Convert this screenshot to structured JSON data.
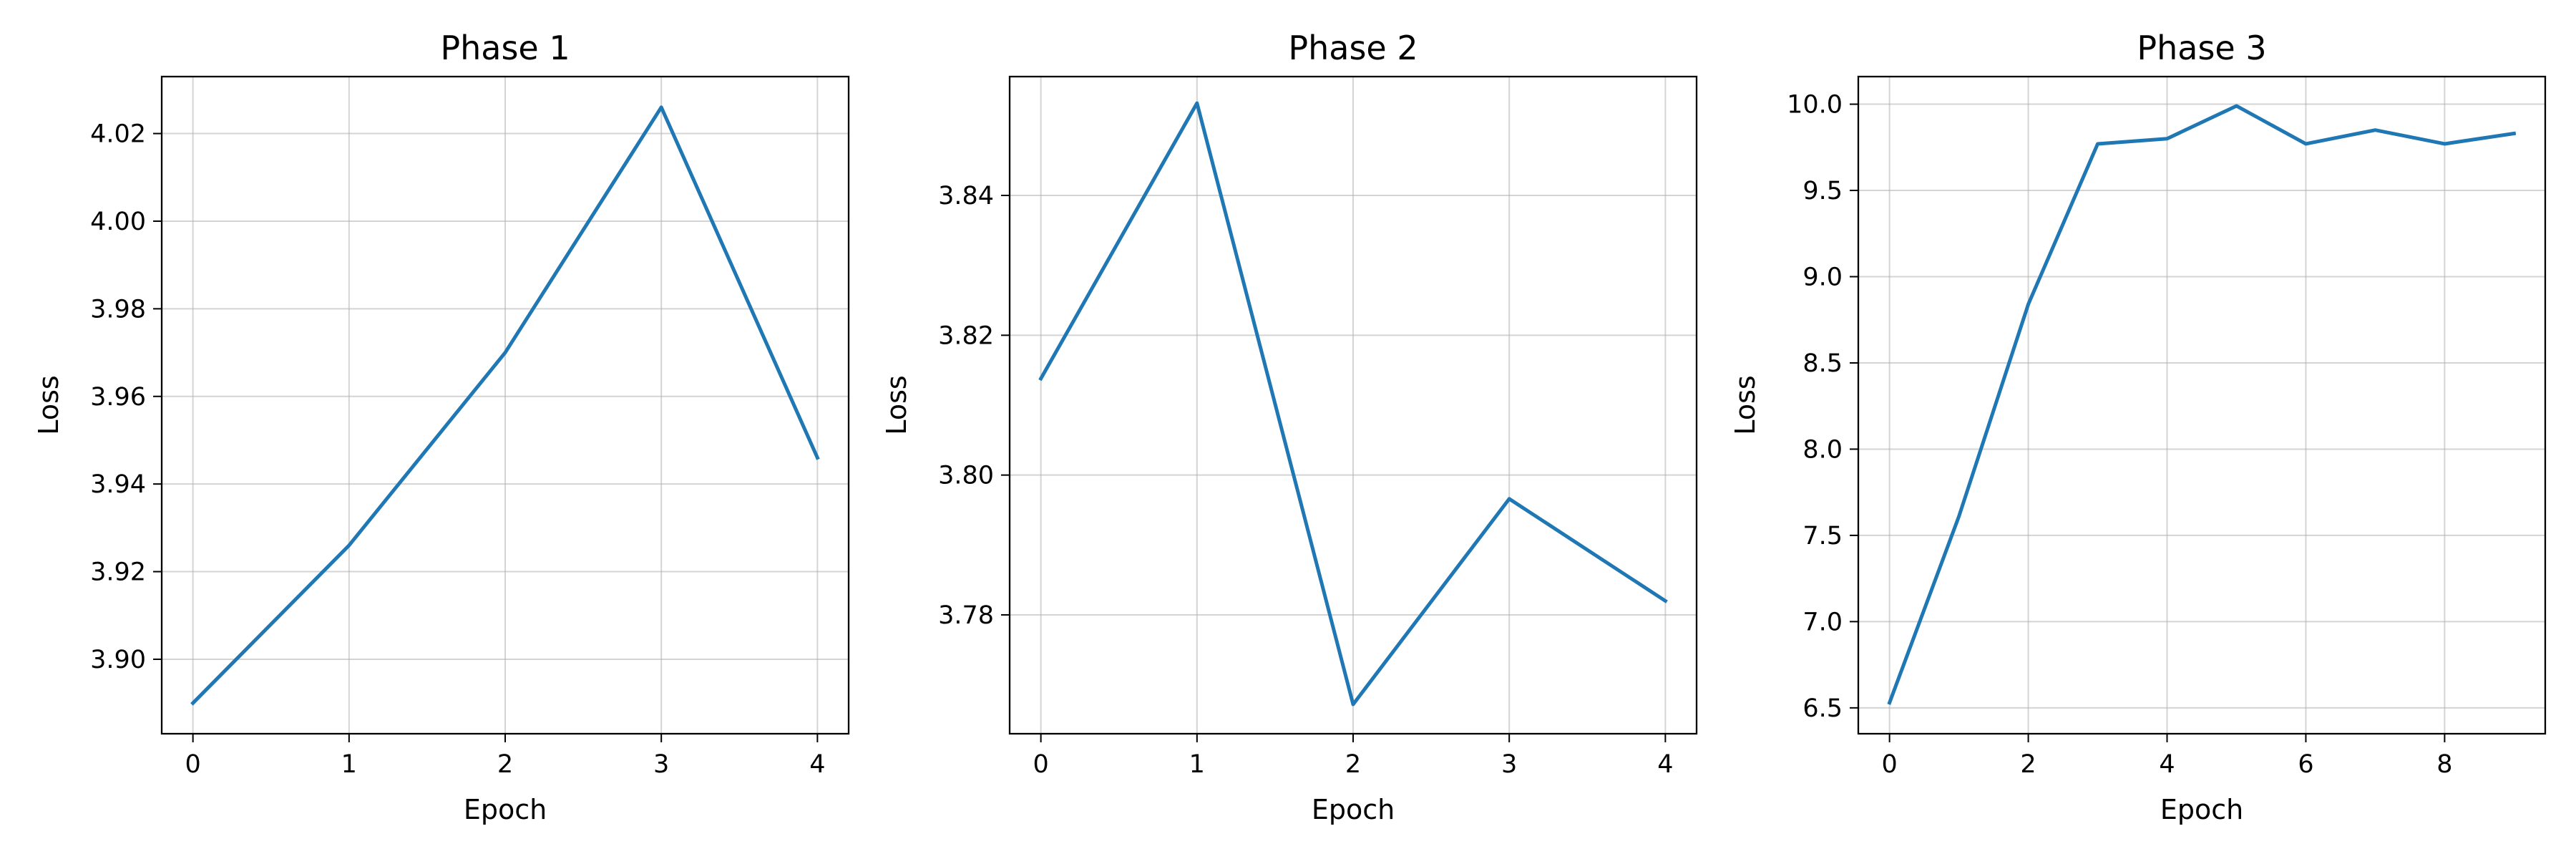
{
  "chart_data": [
    {
      "type": "line",
      "title": "Phase 1",
      "xlabel": "Epoch",
      "ylabel": "Loss",
      "x": [
        0,
        1,
        2,
        3,
        4
      ],
      "series": [
        {
          "values": [
            3.89,
            3.926,
            3.97,
            4.026,
            3.946
          ],
          "color": "#1f77b4"
        }
      ],
      "xlim": [
        -0.2,
        4.2
      ],
      "ylim": [
        3.883,
        4.033
      ],
      "xticks": [
        0,
        1,
        2,
        3,
        4
      ],
      "xtick_labels": [
        "0",
        "1",
        "2",
        "3",
        "4"
      ],
      "yticks": [
        3.9,
        3.92,
        3.94,
        3.96,
        3.98,
        4.0,
        4.02
      ],
      "ytick_labels": [
        "3.90",
        "3.92",
        "3.94",
        "3.96",
        "3.98",
        "4.00",
        "4.02"
      ],
      "grid": true,
      "legend": "none"
    },
    {
      "type": "line",
      "title": "Phase 2",
      "xlabel": "Epoch",
      "ylabel": "Loss",
      "x": [
        0,
        1,
        2,
        3,
        4
      ],
      "series": [
        {
          "values": [
            3.8138,
            3.8532,
            3.7672,
            3.7966,
            3.782
          ],
          "color": "#1f77b4"
        }
      ],
      "xlim": [
        -0.2,
        4.2
      ],
      "ylim": [
        3.763,
        3.857
      ],
      "xticks": [
        0,
        1,
        2,
        3,
        4
      ],
      "xtick_labels": [
        "0",
        "1",
        "2",
        "3",
        "4"
      ],
      "yticks": [
        3.78,
        3.8,
        3.82,
        3.84
      ],
      "ytick_labels": [
        "3.78",
        "3.80",
        "3.82",
        "3.84"
      ],
      "grid": true,
      "legend": "none"
    },
    {
      "type": "line",
      "title": "Phase 3",
      "xlabel": "Epoch",
      "ylabel": "Loss",
      "x": [
        0,
        1,
        2,
        3,
        4,
        5,
        6,
        7,
        8,
        9
      ],
      "series": [
        {
          "values": [
            6.53,
            7.61,
            8.84,
            9.77,
            9.8,
            9.99,
            9.77,
            9.85,
            9.77,
            9.83
          ],
          "color": "#1f77b4"
        }
      ],
      "xlim": [
        -0.45,
        9.45
      ],
      "ylim": [
        6.35,
        10.16
      ],
      "xticks": [
        0,
        2,
        4,
        6,
        8
      ],
      "xtick_labels": [
        "0",
        "2",
        "4",
        "6",
        "8"
      ],
      "yticks": [
        6.5,
        7.0,
        7.5,
        8.0,
        8.5,
        9.0,
        9.5,
        10.0
      ],
      "ytick_labels": [
        "6.5",
        "7.0",
        "7.5",
        "8.0",
        "8.5",
        "9.0",
        "9.5",
        "10.0"
      ],
      "grid": true,
      "legend": "none"
    }
  ]
}
